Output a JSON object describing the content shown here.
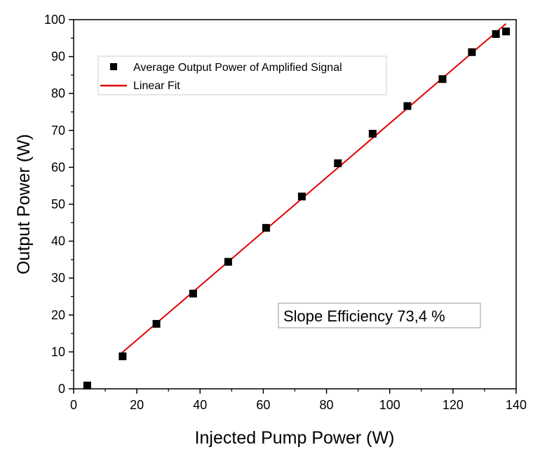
{
  "chart_data": {
    "type": "scatter",
    "title": "",
    "xlabel": "Injected Pump Power (W)",
    "ylabel": "Output Power (W)",
    "xlim": [
      0,
      140
    ],
    "ylim": [
      0,
      100
    ],
    "xticks": [
      0,
      20,
      40,
      60,
      80,
      100,
      120,
      140
    ],
    "yticks": [
      0,
      10,
      20,
      30,
      40,
      50,
      60,
      70,
      80,
      90,
      100
    ],
    "xtick_labels": [
      "0",
      "20",
      "40",
      "60",
      "80",
      "100",
      "120",
      "140"
    ],
    "ytick_labels": [
      "0",
      "10",
      "20",
      "30",
      "40",
      "50",
      "60",
      "70",
      "80",
      "90",
      "100"
    ],
    "grid": false,
    "legend_position": "top-left",
    "series": [
      {
        "name": "Average Output Power of Amplified Signal",
        "type": "scatter",
        "marker": "square",
        "color": "#000000",
        "x": [
          4.3,
          15.5,
          26.2,
          37.8,
          48.9,
          60.9,
          72.2,
          83.6,
          94.6,
          105.6,
          116.7,
          126.0,
          133.6,
          136.8
        ],
        "y": [
          0.9,
          8.8,
          17.6,
          25.8,
          34.4,
          43.6,
          52.1,
          61.1,
          69.1,
          76.6,
          83.9,
          91.2,
          96.1,
          96.8
        ]
      },
      {
        "name": "Linear Fit",
        "type": "line",
        "color": "#e00000",
        "x": [
          15.2,
          136.8
        ],
        "y": [
          9.7,
          98.9
        ]
      }
    ],
    "annotations": [
      "Slope Efficiency 73,4 %"
    ]
  }
}
